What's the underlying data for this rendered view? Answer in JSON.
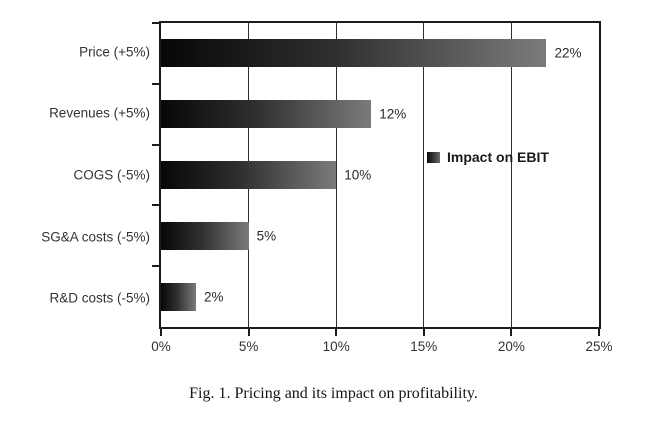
{
  "chart_data": {
    "type": "bar",
    "orientation": "horizontal",
    "title": "",
    "categories": [
      "Price (+5%)",
      "Revenues (+5%)",
      "COGS (-5%)",
      "SG&A costs (-5%)",
      "R&D costs (-5%)"
    ],
    "values": [
      22,
      12,
      10,
      5,
      2
    ],
    "value_labels": [
      "22%",
      "12%",
      "10%",
      "5%",
      "2%"
    ],
    "xlim": [
      0,
      25
    ],
    "x_tick_values": [
      0,
      5,
      10,
      15,
      20,
      25
    ],
    "x_tick_labels": [
      "0%",
      "5%",
      "10%",
      "15%",
      "20%",
      "25%"
    ],
    "grid": "vertical",
    "legend": {
      "label": "Impact on EBIT",
      "position": "inside-right"
    },
    "bar_gradient": [
      "#070707",
      "#7b7b7b"
    ]
  },
  "colors": {
    "axis": "#1c1c1c",
    "grid": "#2d2d2d",
    "text": "#333333",
    "background": "#ffffff"
  },
  "caption": "Fig. 1. Pricing and its impact on profitability."
}
